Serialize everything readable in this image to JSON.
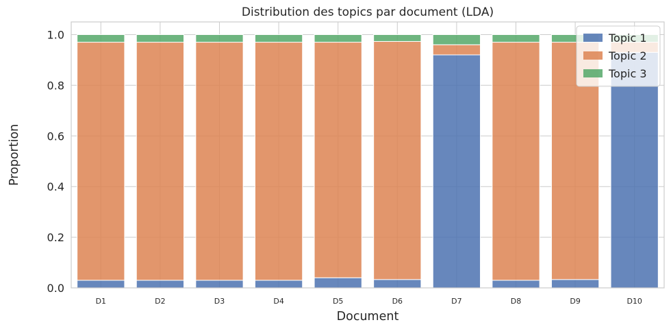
{
  "chart_data": {
    "type": "bar",
    "stacked": true,
    "title": "Distribution des topics par document (LDA)",
    "xlabel": "Document",
    "ylabel": "Proportion",
    "categories": [
      "D1",
      "D2",
      "D3",
      "D4",
      "D5",
      "D6",
      "D7",
      "D8",
      "D9",
      "D10"
    ],
    "ylim": [
      0,
      1.05
    ],
    "yticks": [
      0.0,
      0.2,
      0.4,
      0.6,
      0.8,
      1.0
    ],
    "ytick_labels": [
      "0.0",
      "0.2",
      "0.4",
      "0.6",
      "0.8",
      "1.0"
    ],
    "grid": true,
    "legend_position": "top-right",
    "series": [
      {
        "name": "Topic 1",
        "color": "#4c72b0",
        "values": [
          0.03,
          0.03,
          0.03,
          0.03,
          0.04,
          0.033,
          0.92,
          0.03,
          0.033,
          0.93
        ]
      },
      {
        "name": "Topic 2",
        "color": "#dd8452",
        "values": [
          0.94,
          0.94,
          0.94,
          0.94,
          0.93,
          0.94,
          0.04,
          0.94,
          0.937,
          0.04
        ]
      },
      {
        "name": "Topic 3",
        "color": "#55a868",
        "values": [
          0.03,
          0.03,
          0.03,
          0.03,
          0.03,
          0.027,
          0.04,
          0.03,
          0.03,
          0.03
        ]
      }
    ]
  }
}
